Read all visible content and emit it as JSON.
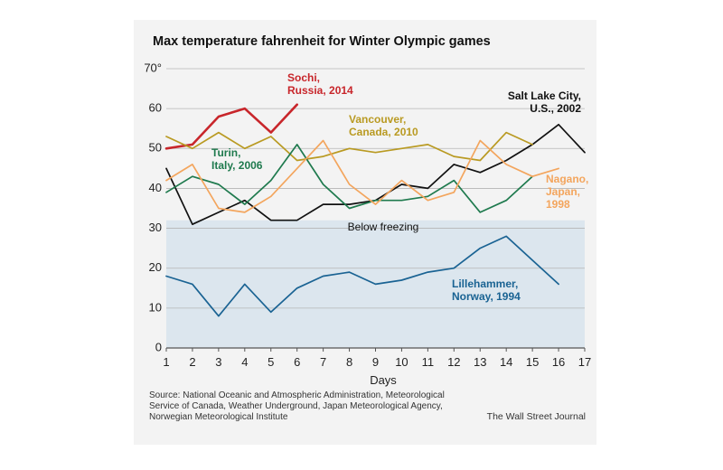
{
  "chart_data": {
    "type": "line",
    "title": "Max temperature fahrenheit for Winter Olympic games",
    "xlabel": "Days",
    "ylabel": "",
    "xlim": [
      1,
      17
    ],
    "ylim": [
      0,
      70
    ],
    "x_ticks": [
      "1",
      "2",
      "3",
      "4",
      "5",
      "6",
      "7",
      "8",
      "9",
      "10",
      "11",
      "12",
      "13",
      "14",
      "15",
      "16",
      "17"
    ],
    "y_ticks": [
      "0",
      "10",
      "20",
      "30",
      "40",
      "50",
      "60",
      "70°"
    ],
    "y_tick_values": [
      0,
      10,
      20,
      30,
      40,
      50,
      60,
      70
    ],
    "grid": "horizontal",
    "shaded_band": {
      "from": 0,
      "to": 32,
      "label": "Below freezing",
      "color": "#dce6ee"
    },
    "series": [
      {
        "name": "Sochi, Russia, 2014",
        "label_lines": [
          "Sochi,",
          "Russia, 2014"
        ],
        "color": "#c8262b",
        "x": [
          1,
          2,
          3,
          4,
          5,
          6
        ],
        "values": [
          50,
          51,
          58,
          60,
          54,
          61
        ]
      },
      {
        "name": "Salt Lake City, U.S., 2002",
        "label_lines": [
          "Salt Lake City,",
          "U.S., 2002"
        ],
        "color": "#111111",
        "x": [
          1,
          2,
          3,
          4,
          5,
          6,
          7,
          8,
          9,
          10,
          11,
          12,
          13,
          14,
          15,
          16,
          17
        ],
        "values": [
          45,
          31,
          34,
          37,
          32,
          32,
          36,
          36,
          37,
          41,
          40,
          46,
          44,
          47,
          51,
          56,
          49
        ]
      },
      {
        "name": "Vancouver, Canada, 2010",
        "label_lines": [
          "Vancouver,",
          "Canada, 2010"
        ],
        "color": "#b99a22",
        "x": [
          1,
          2,
          3,
          4,
          5,
          6,
          7,
          8,
          9,
          10,
          11,
          12,
          13,
          14,
          15
        ],
        "values": [
          53,
          50,
          54,
          50,
          53,
          47,
          48,
          50,
          49,
          50,
          51,
          48,
          47,
          54,
          51
        ]
      },
      {
        "name": "Turin, Italy, 2006",
        "label_lines": [
          "Turin,",
          "Italy, 2006"
        ],
        "color": "#1f7a4e",
        "x": [
          1,
          2,
          3,
          4,
          5,
          6,
          7,
          8,
          9,
          10,
          11,
          12,
          13,
          14,
          15
        ],
        "values": [
          39,
          43,
          41,
          36,
          42,
          51,
          41,
          35,
          37,
          37,
          38,
          42,
          34,
          37,
          43
        ]
      },
      {
        "name": "Nagano, Japan, 1998",
        "label_lines": [
          "Nagano,",
          "Japan,",
          "1998"
        ],
        "color": "#f3a55d",
        "x": [
          1,
          2,
          3,
          4,
          5,
          6,
          7,
          8,
          9,
          10,
          11,
          12,
          13,
          14,
          15,
          16
        ],
        "values": [
          42,
          46,
          35,
          34,
          38,
          45,
          52,
          41,
          36,
          42,
          37,
          39,
          52,
          46,
          43,
          45
        ]
      },
      {
        "name": "Lillehammer, Norway, 1994",
        "label_lines": [
          "Lillehammer,",
          "Norway, 1994"
        ],
        "color": "#1a6393",
        "x": [
          1,
          2,
          3,
          4,
          5,
          6,
          7,
          8,
          9,
          10,
          11,
          12,
          13,
          14,
          15,
          16
        ],
        "values": [
          18,
          16,
          8,
          16,
          9,
          15,
          18,
          19,
          16,
          17,
          19,
          20,
          25,
          28,
          22,
          16
        ]
      }
    ]
  },
  "footer": {
    "source": "Source: National Oceanic and Atmospheric Administration, Meteorological Service of Canada, Weather Underground, Japan Meteorological Agency, Norwegian Meteorological Institute",
    "credit": "The Wall Street Journal"
  }
}
